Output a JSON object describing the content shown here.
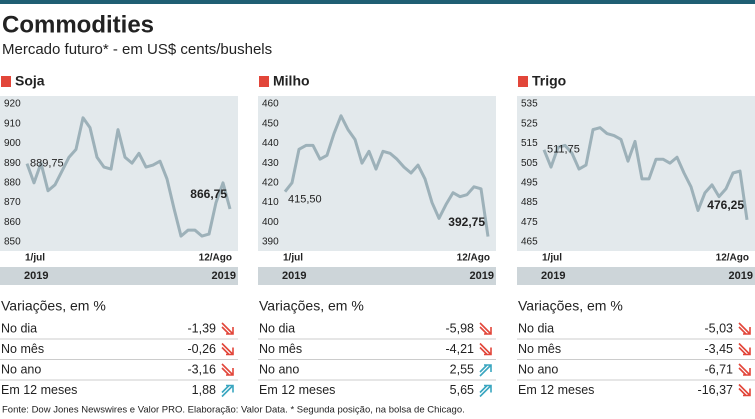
{
  "title": "Commodities",
  "subtitle": "Mercado futuro* - em US$ cents/bushels",
  "chart_data": [
    {
      "type": "line",
      "title": "Soja",
      "color": "#9db1b9",
      "categories": [
        "1/jul",
        null,
        null,
        null,
        null,
        null,
        null,
        null,
        null,
        null,
        null,
        null,
        null,
        null,
        null,
        null,
        null,
        null,
        null,
        null,
        null,
        null,
        null,
        null,
        null,
        null,
        null,
        null,
        null,
        "12/Ago"
      ],
      "years": [
        "2019",
        "2019"
      ],
      "values": [
        889.75,
        880,
        890,
        876,
        879,
        886,
        893,
        897,
        913,
        908,
        893,
        888,
        887,
        907,
        893,
        890,
        895,
        888,
        889,
        891,
        882,
        867,
        853,
        856,
        856,
        853,
        854,
        870,
        880,
        866.75
      ],
      "value_labels": [
        "889,75",
        null,
        null,
        null,
        null,
        null,
        null,
        null,
        null,
        null,
        null,
        null,
        null,
        null,
        null,
        null,
        null,
        null,
        null,
        null,
        null,
        null,
        null,
        null,
        null,
        null,
        null,
        null,
        null,
        "866,75"
      ],
      "ylim": [
        850,
        920
      ],
      "yticks": [
        850,
        860,
        870,
        880,
        890,
        900,
        910,
        920
      ],
      "variations": {
        "title": "Variações, em %",
        "rows": [
          [
            "No dia",
            "-1,39"
          ],
          [
            "No mês",
            "-0,26"
          ],
          [
            "No ano",
            "-3,16"
          ],
          [
            "Em 12 meses",
            "1,88"
          ]
        ]
      }
    },
    {
      "type": "line",
      "title": "Milho",
      "color": "#9db1b9",
      "categories": [
        "1/jul",
        null,
        null,
        null,
        null,
        null,
        null,
        null,
        null,
        null,
        null,
        null,
        null,
        null,
        null,
        null,
        null,
        null,
        null,
        null,
        null,
        null,
        null,
        null,
        null,
        null,
        null,
        null,
        null,
        "12/Ago"
      ],
      "years": [
        "2019",
        "2019"
      ],
      "values": [
        415.5,
        420,
        437,
        439,
        439,
        432,
        434,
        445,
        454,
        447,
        442,
        430,
        436,
        427,
        436,
        435,
        432,
        428,
        425,
        429,
        422,
        410,
        402,
        409,
        415,
        413,
        414,
        418,
        417,
        392.75
      ],
      "value_labels": [
        "415,50",
        null,
        null,
        null,
        null,
        null,
        null,
        null,
        null,
        null,
        null,
        null,
        null,
        null,
        null,
        null,
        null,
        null,
        null,
        null,
        null,
        null,
        null,
        null,
        null,
        null,
        null,
        null,
        null,
        "392,75"
      ],
      "ylim": [
        390,
        460
      ],
      "yticks": [
        390,
        400,
        410,
        420,
        430,
        440,
        450,
        460
      ],
      "variations": {
        "title": "Variações, em %",
        "rows": [
          [
            "No dia",
            "-5,98"
          ],
          [
            "No mês",
            "-4,21"
          ],
          [
            "No ano",
            "2,55"
          ],
          [
            "Em 12 meses",
            "5,65"
          ]
        ]
      }
    },
    {
      "type": "line",
      "title": "Trigo",
      "color": "#9db1b9",
      "categories": [
        "1/jul",
        null,
        null,
        null,
        null,
        null,
        null,
        null,
        null,
        null,
        null,
        null,
        null,
        null,
        null,
        null,
        null,
        null,
        null,
        null,
        null,
        null,
        null,
        null,
        null,
        null,
        null,
        null,
        null,
        "12/Ago"
      ],
      "years": [
        "2019",
        "2019"
      ],
      "values": [
        511.75,
        503,
        513,
        514,
        510,
        502,
        504,
        522,
        523,
        520,
        519,
        517,
        506,
        516,
        497,
        497,
        507,
        507,
        505,
        508,
        500,
        493,
        481,
        490,
        494,
        488,
        492,
        500,
        501,
        476.25
      ],
      "value_labels": [
        "511,75",
        null,
        null,
        null,
        null,
        null,
        null,
        null,
        null,
        null,
        null,
        null,
        null,
        null,
        null,
        null,
        null,
        null,
        null,
        null,
        null,
        null,
        null,
        null,
        null,
        null,
        null,
        null,
        null,
        "476,25"
      ],
      "ylim": [
        465,
        535
      ],
      "yticks": [
        465,
        475,
        485,
        495,
        505,
        515,
        525,
        535
      ],
      "variations": {
        "title": "Variações, em %",
        "rows": [
          [
            "No dia",
            "-5,03"
          ],
          [
            "No mês",
            "-3,45"
          ],
          [
            "No ano",
            "-6,71"
          ],
          [
            "Em 12 meses",
            "-16,37"
          ]
        ]
      }
    }
  ],
  "footer": "Fonte: Dow Jones Newswires e Valor PRO. Elaboração: Valor Data.  * Segunda posição, na bolsa de Chicago."
}
